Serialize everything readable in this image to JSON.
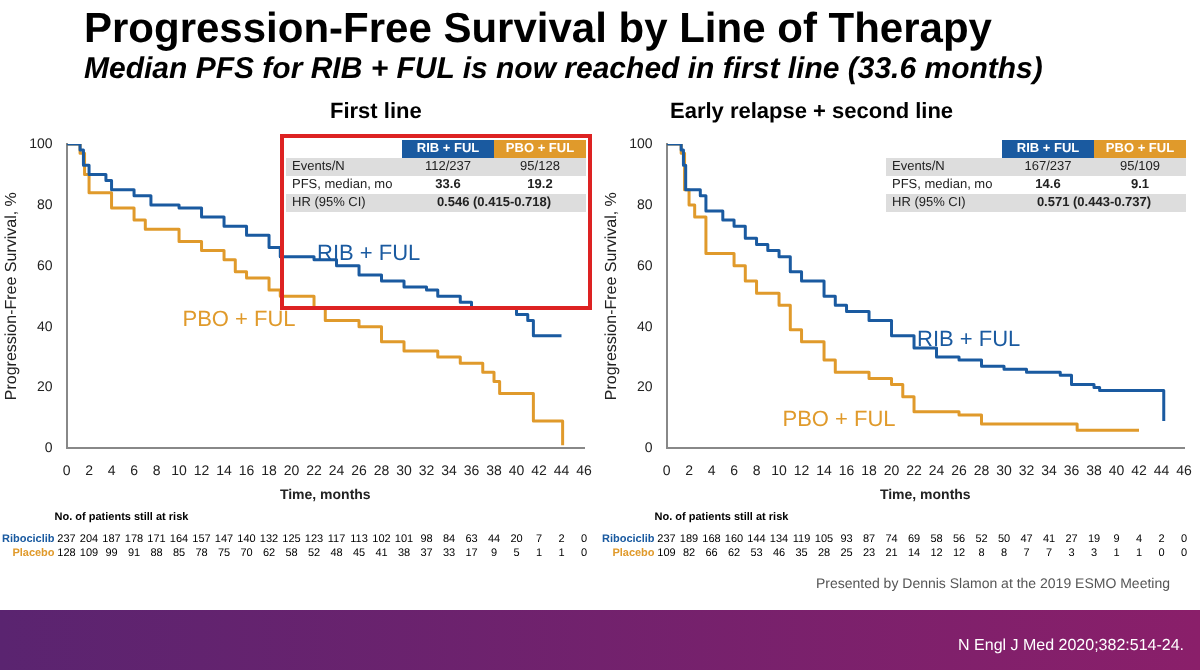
{
  "chart_data": [
    {
      "type": "step",
      "title": "Progression-Free Survival by Line of Therapy",
      "subtitle": "Median PFS for RIB + FUL is now reached in first line (33.6 months)",
      "xlabel": "Time, months",
      "ylabel": "Progression-Free Survival, %",
      "xlim": [
        0,
        46
      ],
      "xticks": [
        0,
        2,
        4,
        6,
        8,
        10,
        12,
        14,
        16,
        18,
        20,
        22,
        24,
        26,
        28,
        30,
        32,
        34,
        36,
        38,
        40,
        42,
        44,
        46
      ],
      "ylim": [
        0,
        100
      ],
      "yticks": [
        0,
        20,
        40,
        60,
        80,
        100
      ],
      "grid": false,
      "legend": false,
      "marker": "none",
      "line_style": "solid",
      "series": [
        {
          "name": "RIB + FUL",
          "color": "#1a5aa0",
          "x": [
            0,
            1.2,
            1.5,
            2,
            3.5,
            4,
            6,
            7.5,
            10,
            12,
            14,
            16,
            18,
            19,
            22,
            24,
            26,
            28,
            30,
            32,
            33,
            35,
            36,
            40,
            41,
            41.5,
            44
          ],
          "values": [
            100,
            98,
            93,
            90,
            88,
            85,
            83,
            80,
            79,
            76,
            73,
            70,
            66,
            63,
            62,
            60,
            57,
            55,
            53,
            52,
            50,
            48,
            46,
            44,
            42,
            37,
            37
          ]
        },
        {
          "name": "PBO + FUL",
          "color": "#e09a2b",
          "x": [
            0,
            1.2,
            1.6,
            2,
            4,
            6,
            7,
            10,
            12,
            14,
            15,
            16,
            18,
            19,
            22,
            23,
            26,
            28,
            30,
            33,
            35,
            37,
            38,
            38.5,
            41,
            41.5,
            44,
            44.1
          ],
          "values": [
            100,
            97,
            90,
            84,
            79,
            75,
            72,
            68,
            65,
            62,
            58,
            56,
            52,
            50,
            46,
            42,
            40,
            35,
            32,
            30,
            28,
            25,
            22,
            18,
            18,
            9,
            9,
            1
          ]
        }
      ],
      "annotations": [
        "First line",
        "RIB + FUL",
        "PBO + FUL",
        "Events/N",
        "112/237",
        "95/128",
        "PFS, median, mo",
        "33.6",
        "19.2",
        "HR (95% CI)",
        "0.546 (0.415-0.718)",
        "No. of patients still at risk",
        "Ribociclib 237 204 187 178 171 164 157 147 140 132 125 123 117 113 102 101 98 84 63 44 20 7 2 0",
        "Placebo 128 109 99 91 88 85 78 75 70 62 58 52 48 45 41 38 37 33 17 9 5 1 1 0"
      ]
    },
    {
      "type": "step",
      "title": "Early relapse + second line",
      "xlabel": "Time, months",
      "ylabel": "Progression-Free Survival, %",
      "xlim": [
        0,
        46
      ],
      "xticks": [
        0,
        2,
        4,
        6,
        8,
        10,
        12,
        14,
        16,
        18,
        20,
        22,
        24,
        26,
        28,
        30,
        32,
        34,
        36,
        38,
        40,
        42,
        44,
        46
      ],
      "ylim": [
        0,
        100
      ],
      "yticks": [
        0,
        20,
        40,
        60,
        80,
        100
      ],
      "grid": false,
      "legend": false,
      "marker": "none",
      "line_style": "solid",
      "series": [
        {
          "name": "RIB + FUL",
          "color": "#1a5aa0",
          "x": [
            0,
            1.3,
            1.5,
            1.7,
            3,
            3.5,
            5,
            6,
            7,
            8,
            9,
            10,
            11,
            12,
            14,
            15,
            16,
            18,
            20,
            22,
            24,
            26,
            28,
            30,
            32,
            35,
            36,
            38,
            38.5,
            44,
            44.2
          ],
          "values": [
            100,
            98,
            93,
            85,
            83,
            78,
            75,
            73,
            69,
            67,
            65,
            63,
            58,
            55,
            50,
            47,
            45,
            42,
            37,
            33,
            30,
            29,
            27,
            26,
            25,
            24,
            21,
            20,
            19,
            19,
            9
          ]
        },
        {
          "name": "PBO + FUL",
          "color": "#e09a2b",
          "x": [
            0,
            1.3,
            1.6,
            2,
            2.5,
            3.5,
            6,
            7,
            8,
            10,
            11,
            12,
            14,
            15,
            18,
            20,
            21,
            22,
            26,
            28,
            30,
            36,
            36.5,
            42
          ],
          "values": [
            100,
            97,
            85,
            80,
            76,
            64,
            60,
            55,
            51,
            47,
            39,
            35,
            29,
            25,
            23,
            21,
            17,
            12,
            11,
            8,
            8,
            8,
            6,
            6
          ]
        }
      ],
      "annotations": [
        "RIB + FUL",
        "PBO + FUL",
        "Events/N",
        "167/237",
        "95/109",
        "PFS, median, mo",
        "14.6",
        "9.1",
        "HR (95% CI)",
        "0.571 (0.443-0.737)",
        "No. of patients still at risk",
        "Ribociclib 237 189 168 160 144 134 119 105 93 87 74 69 58 56 52 50 47 41 27 19 9 4 2 0",
        "Placebo 109 82 66 62 53 46 35 28 25 23 21 14 12 12 8 8 7 7 3 3 1 1 0 0",
        "Presented by Dennis Slamon at the 2019 ESMO Meeting",
        "N Engl J Med 2020;382:514-24."
      ]
    }
  ]
}
